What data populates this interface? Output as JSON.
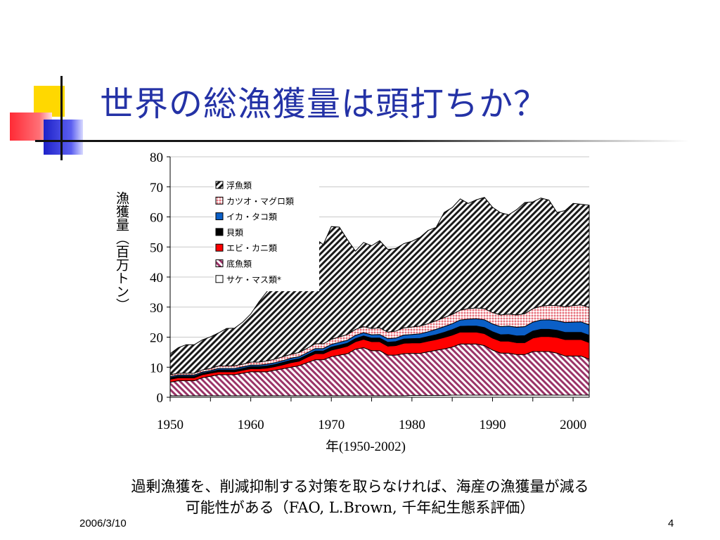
{
  "slide": {
    "title": "世界の総漁獲量は頭打ちか？",
    "caption_line1": "過剰漁獲を、削減抑制する対策を取らなければ、海産の漁獲量が減る",
    "caption_line2": "可能性がある（FAO, L.Brown, 千年紀生態系評価）",
    "footer_date": "2006/3/10",
    "page_number": "4"
  },
  "chart_data": {
    "type": "area",
    "stacked": true,
    "title": "",
    "xlabel": "年(1950-2002)",
    "ylabel": "漁獲量（百万トン）",
    "xlim": [
      1950,
      2002
    ],
    "ylim": [
      0,
      80
    ],
    "x_ticks": [
      1950,
      1960,
      1970,
      1980,
      1990,
      2000
    ],
    "y_ticks": [
      0,
      10,
      20,
      30,
      40,
      50,
      60,
      70,
      80
    ],
    "legend_position": "top-left inside",
    "x": [
      1950,
      1951,
      1952,
      1953,
      1954,
      1955,
      1956,
      1957,
      1958,
      1959,
      1960,
      1961,
      1962,
      1963,
      1964,
      1965,
      1966,
      1967,
      1968,
      1969,
      1970,
      1971,
      1972,
      1973,
      1974,
      1975,
      1976,
      1977,
      1978,
      1979,
      1980,
      1981,
      1982,
      1983,
      1984,
      1985,
      1986,
      1987,
      1988,
      1989,
      1990,
      1991,
      1992,
      1993,
      1994,
      1995,
      1996,
      1997,
      1998,
      1999,
      2000,
      2001,
      2002
    ],
    "series": [
      {
        "name": "サケ・マス類*",
        "pattern": "white",
        "values": [
          0.5,
          0.5,
          0.5,
          0.5,
          0.5,
          0.5,
          0.5,
          0.5,
          0.5,
          0.5,
          0.5,
          0.5,
          0.5,
          0.5,
          0.5,
          0.5,
          0.5,
          0.5,
          0.5,
          0.5,
          0.5,
          0.5,
          0.5,
          0.5,
          0.5,
          0.5,
          0.5,
          0.5,
          0.5,
          0.5,
          0.6,
          0.6,
          0.6,
          0.6,
          0.6,
          0.7,
          0.7,
          0.7,
          0.7,
          0.7,
          0.7,
          0.7,
          0.7,
          0.7,
          0.7,
          0.7,
          0.7,
          0.7,
          0.7,
          0.7,
          0.7,
          0.7,
          0.7
        ]
      },
      {
        "name": "底魚類",
        "pattern": "purple-diagonal",
        "values": [
          4.5,
          5,
          5,
          5,
          6,
          6.5,
          7,
          7,
          7,
          7.5,
          8,
          8,
          8,
          8.5,
          9,
          9.5,
          10,
          11,
          12,
          12,
          13,
          13.5,
          14,
          15.5,
          16,
          15,
          15,
          13.5,
          13.5,
          14,
          14,
          14,
          14.5,
          15,
          15.5,
          16,
          17,
          17,
          17,
          16.5,
          15,
          14,
          14,
          13.5,
          13.5,
          14.5,
          14.5,
          14.5,
          14,
          13,
          13,
          13,
          12
        ]
      },
      {
        "name": "エビ・カニ類",
        "pattern": "red",
        "values": [
          1,
          1,
          1,
          1,
          1,
          1,
          1,
          1,
          1,
          1,
          1,
          1,
          1.2,
          1.2,
          1.3,
          1.5,
          1.5,
          1.8,
          2,
          2,
          2.2,
          2.3,
          2.5,
          2.5,
          2.8,
          3,
          3,
          3,
          3.2,
          3.5,
          3.5,
          3.5,
          3.6,
          3.6,
          3.8,
          4,
          4,
          4,
          4,
          4,
          4,
          4,
          4,
          4,
          4,
          4.5,
          5,
          5,
          5.2,
          5.5,
          5.5,
          5.5,
          5.5
        ]
      },
      {
        "name": "貝類",
        "pattern": "black",
        "values": [
          0.5,
          0.5,
          0.5,
          0.5,
          0.5,
          0.5,
          0.6,
          0.6,
          0.6,
          0.6,
          0.7,
          0.7,
          0.7,
          0.7,
          0.8,
          0.8,
          0.8,
          0.8,
          0.9,
          0.9,
          1,
          1,
          1,
          1,
          1.1,
          1.2,
          1.2,
          1.3,
          1.3,
          1.4,
          1.4,
          1.5,
          1.5,
          1.6,
          1.7,
          1.8,
          1.9,
          2,
          2,
          2,
          2.1,
          2.1,
          2.2,
          2.2,
          2.3,
          2.3,
          2.4,
          2.4,
          2.4,
          2.4,
          2.4,
          2.4,
          2.4
        ]
      },
      {
        "name": "イカ・タコ類",
        "pattern": "blue",
        "values": [
          0.4,
          0.4,
          0.4,
          0.4,
          0.4,
          0.4,
          0.5,
          0.5,
          0.5,
          0.5,
          0.5,
          0.5,
          0.6,
          0.6,
          0.6,
          0.7,
          0.7,
          0.7,
          0.8,
          0.8,
          0.9,
          1,
          1,
          1.1,
          1.1,
          1.1,
          1.2,
          1.2,
          1.2,
          1.3,
          1.4,
          1.5,
          1.6,
          1.8,
          1.9,
          2,
          2.1,
          2.3,
          2.4,
          2.6,
          2.6,
          2.7,
          2.8,
          2.9,
          3,
          3,
          3.1,
          3.2,
          3.2,
          3.3,
          3.4,
          3.5,
          3.5
        ]
      },
      {
        "name": "カツオ・マグロ類",
        "pattern": "pink-dots",
        "values": [
          0.6,
          0.6,
          0.6,
          0.6,
          0.7,
          0.7,
          0.8,
          0.8,
          0.9,
          0.9,
          1,
          1,
          1.1,
          1.2,
          1.3,
          1.3,
          1.4,
          1.5,
          1.6,
          1.6,
          1.7,
          1.8,
          1.9,
          2,
          2,
          2.1,
          2.2,
          2.2,
          2.3,
          2.4,
          2.5,
          2.6,
          2.7,
          2.9,
          3,
          3.1,
          3.3,
          3.5,
          3.6,
          3.7,
          3.8,
          3.9,
          4,
          4.1,
          4.3,
          4.5,
          4.6,
          4.8,
          5,
          5.2,
          5.5,
          5.6,
          5.8
        ]
      },
      {
        "name": "浮魚類",
        "pattern": "black-diagonal",
        "values": [
          7,
          8.5,
          9.5,
          9.5,
          10,
          10.5,
          11,
          12.5,
          12.5,
          14,
          16,
          20,
          23,
          26,
          26,
          30,
          31,
          32.5,
          35,
          33,
          37.5,
          36.5,
          31.5,
          26,
          28,
          27.5,
          29,
          27.5,
          27.5,
          28,
          28.5,
          29.5,
          31,
          31,
          35,
          35.5,
          37,
          35,
          36,
          37,
          35,
          34,
          33,
          35,
          37,
          35.5,
          36,
          35,
          31,
          32,
          34,
          33.5,
          34
        ]
      }
    ]
  }
}
